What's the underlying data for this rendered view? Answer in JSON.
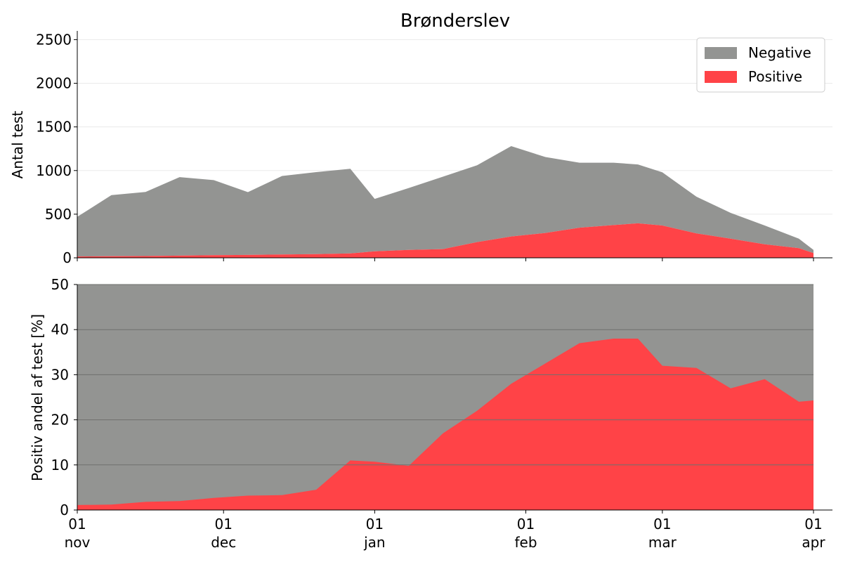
{
  "chart_data": [
    {
      "type": "area",
      "title": "Brønderslev",
      "ylabel": "Antal test",
      "xlabel": "",
      "ylim": [
        0,
        2600
      ],
      "yticks": [
        0,
        500,
        1000,
        1500,
        2000,
        2500
      ],
      "xticks": [
        {
          "date": "2020-11-01",
          "label_top": "01",
          "label_bottom": "nov"
        },
        {
          "date": "2020-12-01",
          "label_top": "01",
          "label_bottom": "dec"
        },
        {
          "date": "2021-01-01",
          "label_top": "01",
          "label_bottom": "jan"
        },
        {
          "date": "2021-02-01",
          "label_top": "01",
          "label_bottom": "feb"
        },
        {
          "date": "2021-03-01",
          "label_top": "01",
          "label_bottom": "mar"
        },
        {
          "date": "2021-04-01",
          "label_top": "01",
          "label_bottom": "apr"
        }
      ],
      "legend_position": "top-right",
      "stacked": true,
      "series": [
        {
          "name": "Positive",
          "color": "#ff4347",
          "points": [
            [
              "2020-11-01",
              15
            ],
            [
              "2020-11-08",
              18
            ],
            [
              "2020-11-15",
              20
            ],
            [
              "2020-11-22",
              25
            ],
            [
              "2020-11-29",
              30
            ],
            [
              "2020-12-06",
              33
            ],
            [
              "2020-12-13",
              38
            ],
            [
              "2020-12-20",
              42
            ],
            [
              "2020-12-27",
              50
            ],
            [
              "2021-01-01",
              75
            ],
            [
              "2021-01-08",
              90
            ],
            [
              "2021-01-15",
              100
            ],
            [
              "2021-01-22",
              180
            ],
            [
              "2021-01-29",
              245
            ],
            [
              "2021-02-05",
              285
            ],
            [
              "2021-02-12",
              345
            ],
            [
              "2021-02-19",
              375
            ],
            [
              "2021-02-24",
              395
            ],
            [
              "2021-03-01",
              370
            ],
            [
              "2021-03-08",
              280
            ],
            [
              "2021-03-15",
              220
            ],
            [
              "2021-03-22",
              155
            ],
            [
              "2021-03-29",
              110
            ],
            [
              "2021-04-01",
              55
            ]
          ]
        },
        {
          "name": "Negative",
          "color": "#939492",
          "points": [
            [
              "2020-11-01",
              455
            ],
            [
              "2020-11-08",
              700
            ],
            [
              "2020-11-15",
              735
            ],
            [
              "2020-11-22",
              900
            ],
            [
              "2020-11-29",
              860
            ],
            [
              "2020-12-06",
              720
            ],
            [
              "2020-12-13",
              900
            ],
            [
              "2020-12-20",
              940
            ],
            [
              "2020-12-27",
              970
            ],
            [
              "2021-01-01",
              600
            ],
            [
              "2021-01-08",
              710
            ],
            [
              "2021-01-15",
              830
            ],
            [
              "2021-01-22",
              880
            ],
            [
              "2021-01-29",
              1035
            ],
            [
              "2021-02-05",
              870
            ],
            [
              "2021-02-12",
              745
            ],
            [
              "2021-02-19",
              715
            ],
            [
              "2021-02-24",
              675
            ],
            [
              "2021-03-01",
              610
            ],
            [
              "2021-03-08",
              420
            ],
            [
              "2021-03-15",
              295
            ],
            [
              "2021-03-22",
              215
            ],
            [
              "2021-03-29",
              110
            ],
            [
              "2021-04-01",
              35
            ]
          ]
        }
      ]
    },
    {
      "type": "area",
      "title": "",
      "ylabel": "Positiv andel af test [%]",
      "xlabel": "",
      "ylim": [
        0,
        50
      ],
      "yticks": [
        0,
        10,
        20,
        30,
        40,
        50
      ],
      "xticks": [
        {
          "date": "2020-11-01",
          "label_top": "01",
          "label_bottom": "nov"
        },
        {
          "date": "2020-12-01",
          "label_top": "01",
          "label_bottom": "dec"
        },
        {
          "date": "2021-01-01",
          "label_top": "01",
          "label_bottom": "jan"
        },
        {
          "date": "2021-02-01",
          "label_top": "01",
          "label_bottom": "feb"
        },
        {
          "date": "2021-03-01",
          "label_top": "01",
          "label_bottom": "mar"
        },
        {
          "date": "2021-04-01",
          "label_top": "01",
          "label_bottom": "apr"
        }
      ],
      "grid": true,
      "background_color": "#939492",
      "series": [
        {
          "name": "Positive",
          "color": "#ff4347",
          "points": [
            [
              "2020-11-01",
              1.1
            ],
            [
              "2020-11-08",
              1.2
            ],
            [
              "2020-11-15",
              1.8
            ],
            [
              "2020-11-22",
              2.0
            ],
            [
              "2020-11-29",
              2.7
            ],
            [
              "2020-12-06",
              3.2
            ],
            [
              "2020-12-13",
              3.3
            ],
            [
              "2020-12-20",
              4.5
            ],
            [
              "2020-12-27",
              11.0
            ],
            [
              "2021-01-01",
              10.7
            ],
            [
              "2021-01-08",
              9.8
            ],
            [
              "2021-01-15",
              17.0
            ],
            [
              "2021-01-22",
              22.0
            ],
            [
              "2021-01-29",
              28.0
            ],
            [
              "2021-02-05",
              32.5
            ],
            [
              "2021-02-12",
              37.0
            ],
            [
              "2021-02-19",
              38.0
            ],
            [
              "2021-02-24",
              38.0
            ],
            [
              "2021-03-01",
              32.0
            ],
            [
              "2021-03-08",
              31.5
            ],
            [
              "2021-03-15",
              27.0
            ],
            [
              "2021-03-22",
              29.0
            ],
            [
              "2021-03-29",
              24.0
            ],
            [
              "2021-04-01",
              24.3
            ]
          ]
        }
      ]
    }
  ]
}
